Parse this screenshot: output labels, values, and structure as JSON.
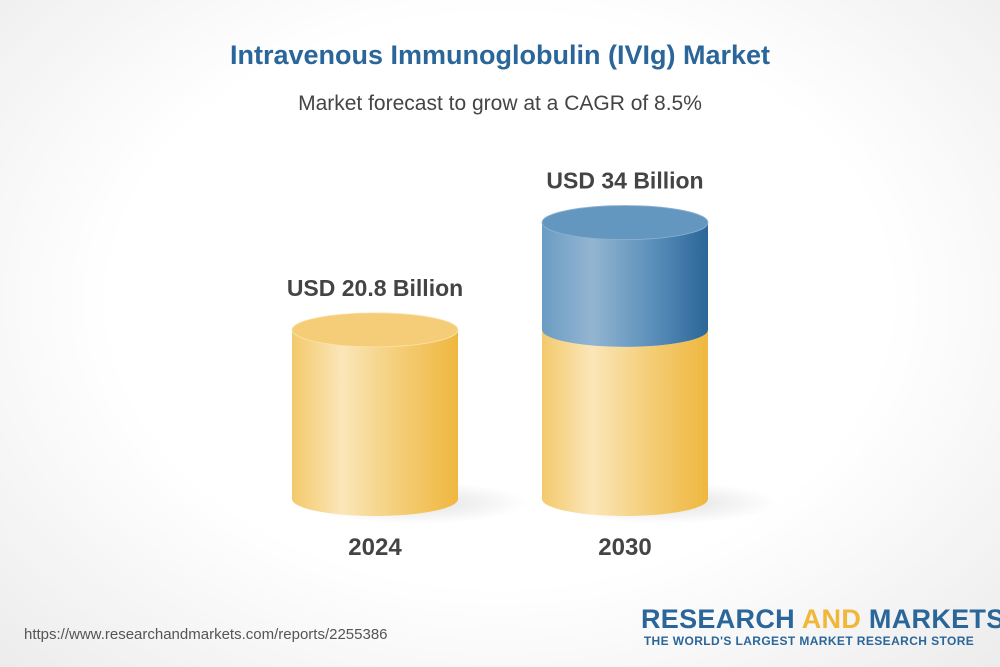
{
  "title": "Intravenous Immunoglobulin (IVIg) Market",
  "subtitle": "Market forecast to grow at a CAGR of 8.5%",
  "chart_data": {
    "type": "bar",
    "style": "3d-cylinder",
    "categories": [
      "2024",
      "2030"
    ],
    "values": [
      20.8,
      34
    ],
    "unit": "USD Billion",
    "data_labels": [
      "USD 20.8 Billion",
      "USD 34 Billion"
    ],
    "cagr": "8.5%",
    "colors": {
      "base": "#f2c25a",
      "growth": "#3e78a8"
    }
  },
  "footer": {
    "url": "https://www.researchandmarkets.com/reports/2255386",
    "logo_part1": "RESEARCH ",
    "logo_part2": "AND",
    "logo_part3": " MARKETS",
    "logo_tagline": "THE WORLD'S LARGEST MARKET RESEARCH STORE"
  }
}
